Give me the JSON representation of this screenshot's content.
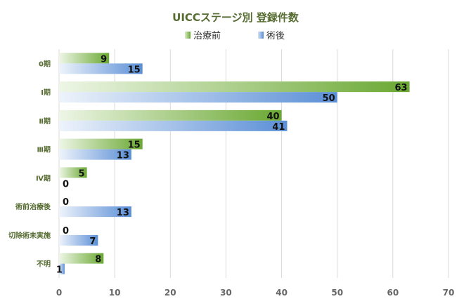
{
  "chart_data": {
    "type": "bar",
    "orientation": "horizontal",
    "title": "UICCステージ別 登録件数",
    "categories": [
      "0期",
      "Ⅰ期",
      "Ⅱ期",
      "Ⅲ期",
      "Ⅳ期",
      "術前治療後",
      "切除術未実施",
      "不明"
    ],
    "series": [
      {
        "name": "治療前",
        "values": [
          9,
          63,
          40,
          15,
          5,
          0,
          0,
          8
        ],
        "color": "#6aa832"
      },
      {
        "name": "術後",
        "values": [
          15,
          50,
          41,
          13,
          0,
          13,
          7,
          1
        ],
        "color": "#5b8fd6"
      }
    ],
    "xlim": [
      0,
      70
    ],
    "xticks": [
      0,
      10,
      20,
      30,
      40,
      50,
      60,
      70
    ],
    "grid": true,
    "legend_position": "top"
  }
}
